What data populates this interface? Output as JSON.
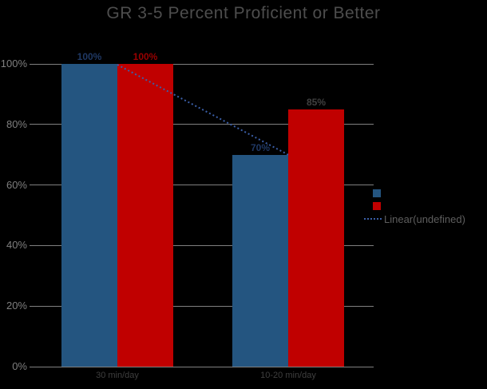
{
  "page": {
    "background": "#000000"
  },
  "chart_data": {
    "type": "bar",
    "title": "GR 3-5 Percent Proficient or Better",
    "categories": [
      "30 min/day",
      "10-20 min/day"
    ],
    "series": [
      {
        "name": "blue-series",
        "color": "#245580",
        "values": [
          100,
          70
        ],
        "data_labels": [
          "100%",
          "70%"
        ],
        "data_label_colors": [
          "#1F3864",
          "#1F3864"
        ]
      },
      {
        "name": "red-series",
        "color": "#C00000",
        "values": [
          100,
          85
        ],
        "data_labels": [
          "100%",
          "85%"
        ],
        "data_label_colors": [
          "#990000",
          "#404040"
        ]
      }
    ],
    "trendline": {
      "label": "Linear(undefined)",
      "color": "#3B5FA8",
      "style": "dotted",
      "from_value": 100,
      "to_value": 70
    },
    "ylim": [
      0,
      100
    ],
    "yticks": [
      {
        "label": "100%",
        "value": 100
      },
      {
        "label": "80%",
        "value": 80
      },
      {
        "label": "60%",
        "value": 60
      },
      {
        "label": "40%",
        "value": 40
      },
      {
        "label": "20%",
        "value": 20
      },
      {
        "label": "0%",
        "value": 0
      }
    ],
    "grid": true,
    "legend": {
      "position": "right",
      "entries": [
        {
          "swatch": "square",
          "color": "#245580",
          "label": ""
        },
        {
          "swatch": "square",
          "color": "#C00000",
          "label": ""
        },
        {
          "swatch": "dotted-line",
          "color": "#3B5FA8",
          "label": "Linear(undefined)"
        }
      ]
    },
    "colors": {
      "gridline": "#808080",
      "title_text": "#4D4D4D",
      "ytick_text": "#7F7F7F",
      "xtick_text": "#3F3F3F",
      "legend_text": "#5E5E5E"
    }
  }
}
